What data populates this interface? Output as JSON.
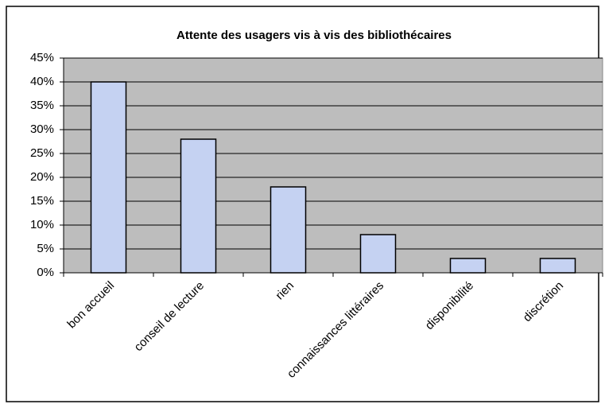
{
  "chart_data": {
    "type": "bar",
    "title": "Attente des usagers vis à vis des bibliothécaires",
    "categories": [
      "bon accueil",
      "conseil de lecture",
      "rien",
      "connaissances littéraires",
      "disponibilité",
      "discrétion"
    ],
    "values": [
      40,
      28,
      18,
      8,
      3,
      3
    ],
    "color": "#c5d2f2",
    "ylim": [
      0,
      45
    ],
    "yticks": [
      {
        "value": 0,
        "label": "0%"
      },
      {
        "value": 5,
        "label": "5%"
      },
      {
        "value": 10,
        "label": "10%"
      },
      {
        "value": 15,
        "label": "15%"
      },
      {
        "value": 20,
        "label": "20%"
      },
      {
        "value": 25,
        "label": "25%"
      },
      {
        "value": 30,
        "label": "30%"
      },
      {
        "value": 35,
        "label": "35%"
      },
      {
        "value": 40,
        "label": "40%"
      },
      {
        "value": 45,
        "label": "45%"
      }
    ],
    "grid": true
  }
}
